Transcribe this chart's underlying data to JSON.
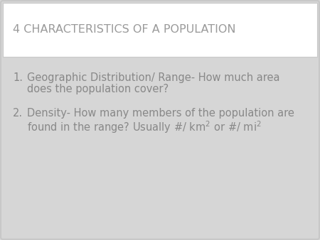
{
  "title": "4 CHARACTERISTICS OF A POPULATION",
  "title_color": "#9a9a9a",
  "title_fontsize": 11.5,
  "title_bg_color": "#ffffff",
  "slide_bg_color": "#d6d6d6",
  "border_color": "#c8c8c8",
  "item1_number": "1.",
  "item1_line1": "Geographic Distribution/ Range- How much area",
  "item1_line2": "does the population cover?",
  "item2_number": "2.",
  "item2_line1": "Density- How many members of the population are",
  "item2_line2": "found in the range? Usually #/ km$^{2}$ or #/ mi$^{2}$",
  "body_text_color": "#888888",
  "body_fontsize": 10.5,
  "font_family": "DejaVu Sans"
}
